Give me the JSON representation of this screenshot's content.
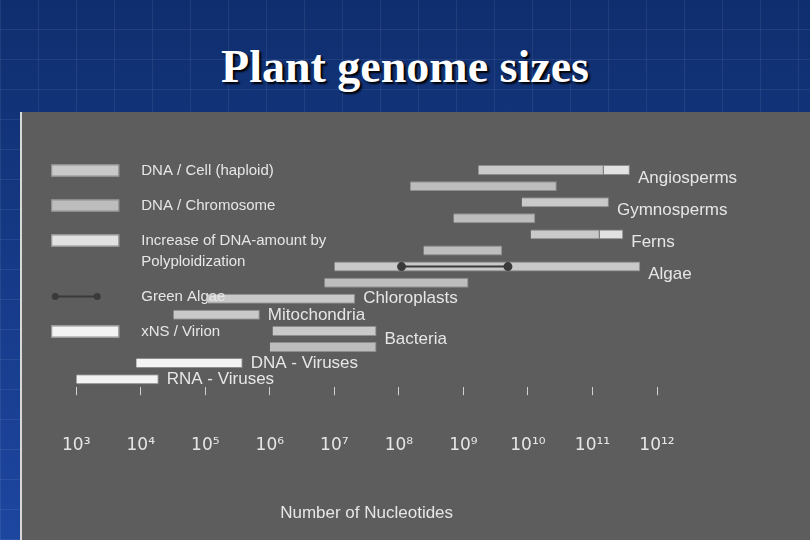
{
  "chart_data": {
    "type": "bar",
    "orientation": "horizontal",
    "title": "Plant genome sizes",
    "x_label": "Number of Nucleotides",
    "categories": [
      "Angiosperms",
      null,
      "Gymnosperms",
      null,
      "Ferns",
      null,
      "Algae",
      null,
      "Chloroplasts",
      "Mitochondria",
      "Bacteria",
      null,
      "DNA - Viruses",
      "RNA - Viruses"
    ],
    "series": [
      {
        "name": "DNA / Cell (haploid)",
        "color": "#c9c9c9",
        "values": [
          [
            1700000000.0,
            150000000000.0
          ],
          null,
          [
            8000000000.0,
            180000000000.0
          ],
          null,
          [
            11000000000.0,
            130000000000.0
          ],
          null,
          [
            10000000.0,
            550000000000.0
          ],
          null,
          [
            110000.0,
            21000000.0
          ],
          [
            32000.0,
            700000.0
          ],
          [
            1100000.0,
            45000000.0
          ],
          null,
          null,
          null
        ]
      },
      {
        "name": "DNA / Chromosome",
        "color": "#bdbdbd",
        "values": [
          null,
          [
            150000000.0,
            28000000000.0
          ],
          null,
          [
            700000000.0,
            13000000000.0
          ],
          null,
          [
            240000000.0,
            4000000000.0
          ],
          null,
          [
            7000000.0,
            1200000000.0
          ],
          null,
          null,
          null,
          [
            1000000.0,
            45000000.0
          ],
          null,
          null
        ]
      },
      {
        "name": "Increase of DNA-amount by Polyploidization",
        "color": "#e2e2e2",
        "values": [
          [
            150000000000.0,
            380000000000.0
          ],
          null,
          null,
          null,
          [
            130000000000.0,
            300000000000.0
          ],
          null,
          null,
          null,
          null,
          null,
          null,
          null,
          null,
          null
        ]
      },
      {
        "name": "Green Algae",
        "type": "line",
        "marker": "circle",
        "color": "#3a3a3a",
        "values": [
          null,
          null,
          null,
          null,
          null,
          null,
          [
            110000000.0,
            4900000000.0
          ],
          null,
          null,
          null,
          null,
          null,
          null,
          null
        ]
      },
      {
        "name": "xNS / Virion",
        "color": "#f3f3f3",
        "values": [
          null,
          null,
          null,
          null,
          null,
          null,
          null,
          null,
          null,
          null,
          null,
          null,
          [
            8500.0,
            380000.0
          ],
          [
            1000.0,
            19000.0
          ]
        ]
      }
    ],
    "log": "x",
    "xlim": [
      1000.0,
      1000000000000.0
    ],
    "xticks": [
      {
        "value": 1000.0,
        "label": "10³"
      },
      {
        "value": 10000.0,
        "label": "10⁴"
      },
      {
        "value": 100000.0,
        "label": "10⁵"
      },
      {
        "value": 1000000.0,
        "label": "10⁶"
      },
      {
        "value": 10000000.0,
        "label": "10⁷"
      },
      {
        "value": 100000000.0,
        "label": "10⁸"
      },
      {
        "value": 1000000000.0,
        "label": "10⁹"
      },
      {
        "value": 10000000000.0,
        "label": "10¹⁰"
      },
      {
        "value": 100000000000.0,
        "label": "10¹¹"
      },
      {
        "value": 1000000000000.0,
        "label": "10¹²"
      }
    ],
    "grid": false,
    "legend": "upper left",
    "tick_labels": "x"
  }
}
